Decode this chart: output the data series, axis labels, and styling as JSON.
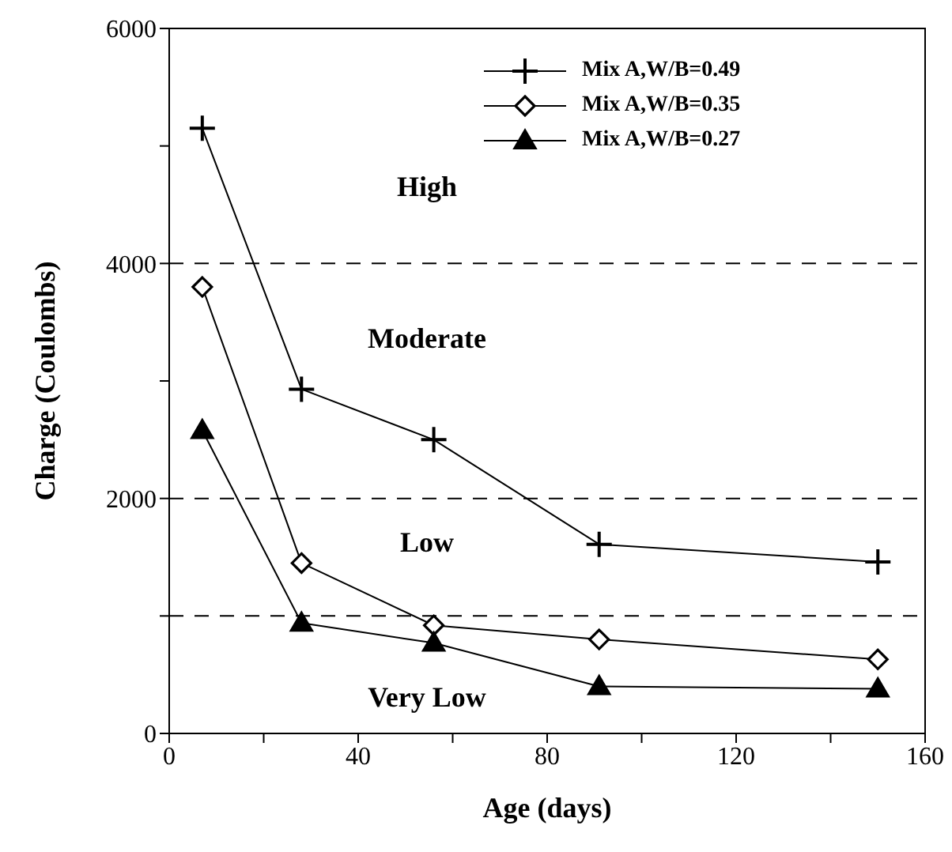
{
  "chart_data": {
    "type": "line",
    "xlabel": "Age  (days)",
    "ylabel": "Charge  (Coulombs)",
    "x": [
      7,
      28,
      56,
      91,
      150
    ],
    "series": [
      {
        "name": "Mix A,W/B=0.49",
        "color": "#000000",
        "marker": "cross",
        "values": [
          5150,
          2930,
          2500,
          1610,
          1460
        ]
      },
      {
        "name": "Mix A,W/B=0.35",
        "color": "#000000",
        "marker": "diamond",
        "values": [
          3800,
          1450,
          920,
          800,
          630
        ]
      },
      {
        "name": "Mix A,W/B=0.27",
        "color": "#000000",
        "marker": "triangle",
        "values": [
          2580,
          940,
          770,
          400,
          380
        ]
      }
    ],
    "xlim": [
      0,
      160
    ],
    "xticks": [
      0,
      {
        "value": 20,
        "label": null
      },
      40,
      {
        "value": 60,
        "label": null
      },
      80,
      {
        "value": 100,
        "label": null
      },
      120,
      {
        "value": 140,
        "label": null
      },
      160
    ],
    "ylim": [
      0,
      6000
    ],
    "yticks": [
      0,
      {
        "value": 1000,
        "label": null
      },
      2000,
      {
        "value": 3000,
        "label": null
      },
      4000,
      {
        "value": 5000,
        "label": null
      },
      6000
    ],
    "ref_lines": [
      {
        "axis": "y",
        "value": 4000,
        "color": "#000000",
        "line_style": "dashed"
      },
      {
        "axis": "y",
        "value": 2000,
        "color": "#000000",
        "line_style": "dashed"
      },
      {
        "axis": "y",
        "value": 1000,
        "color": "#000000",
        "line_style": "dashed"
      }
    ],
    "annotations": [
      "High",
      "Moderate",
      "Low",
      "Very Low"
    ],
    "legend": "top right",
    "line_style": "solid"
  }
}
